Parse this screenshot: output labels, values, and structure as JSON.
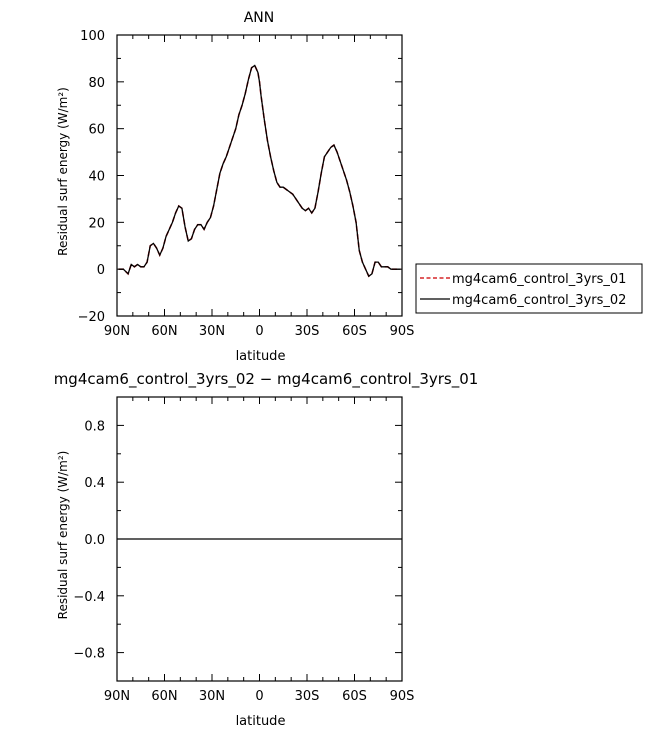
{
  "chart_data": [
    {
      "type": "line",
      "title": "ANN",
      "xlabel": "latitude",
      "ylabel": "Residual surf energy (W/m²)",
      "xlim": [
        90,
        -90
      ],
      "ylim": [
        -20,
        100
      ],
      "x_ticks": [
        90,
        60,
        30,
        0,
        -30,
        -60,
        -90
      ],
      "x_tick_labels": [
        "90N",
        "60N",
        "30N",
        "0",
        "30S",
        "60S",
        "90S"
      ],
      "y_ticks": [
        -20,
        0,
        20,
        40,
        60,
        80,
        100
      ],
      "y_tick_labels": [
        "−20",
        "0",
        "20",
        "40",
        "60",
        "80",
        "100"
      ],
      "legend_position": "right",
      "series": [
        {
          "name": "mg4cam6_control_3yrs_01",
          "color": "#d62728",
          "style": "dashed",
          "x": [
            89,
            86,
            83,
            81,
            79,
            77,
            75,
            73,
            71,
            69,
            67,
            65,
            63,
            61,
            59,
            57,
            55,
            53,
            51,
            49,
            47,
            45,
            43,
            41,
            39,
            37,
            35,
            33,
            31,
            29,
            27,
            25,
            23,
            21,
            19,
            17,
            15,
            13,
            11,
            9,
            7,
            5,
            3,
            1,
            0,
            -1,
            -3,
            -5,
            -7,
            -9,
            -11,
            -13,
            -15,
            -17,
            -19,
            -21,
            -23,
            -25,
            -27,
            -29,
            -31,
            -33,
            -35,
            -37,
            -39,
            -41,
            -43,
            -45,
            -47,
            -49,
            -51,
            -53,
            -55,
            -57,
            -59,
            -61,
            -63,
            -65,
            -67,
            -69,
            -71,
            -73,
            -75,
            -77,
            -79,
            -81,
            -83,
            -85,
            -87,
            -89
          ],
          "y": [
            0,
            0,
            -2,
            2,
            1,
            2,
            1,
            1,
            3,
            10,
            11,
            9,
            6,
            9,
            14,
            17,
            20,
            24,
            27,
            26,
            18,
            12,
            13,
            17,
            19,
            19,
            17,
            20,
            22,
            27,
            34,
            41,
            45,
            48,
            52,
            56,
            60,
            66,
            70,
            75,
            81,
            86,
            87,
            84,
            80,
            74,
            64,
            55,
            48,
            42,
            37,
            35,
            35,
            34,
            33,
            32,
            30,
            28,
            26,
            25,
            26,
            24,
            26,
            33,
            41,
            48,
            50,
            52,
            53,
            50,
            46,
            42,
            38,
            33,
            27,
            20,
            8,
            3,
            0,
            -3,
            -2,
            3,
            3,
            1,
            1,
            1,
            0,
            0,
            0,
            0
          ]
        },
        {
          "name": "mg4cam6_control_3yrs_02",
          "color": "#000000",
          "style": "solid",
          "x": [
            89,
            86,
            83,
            81,
            79,
            77,
            75,
            73,
            71,
            69,
            67,
            65,
            63,
            61,
            59,
            57,
            55,
            53,
            51,
            49,
            47,
            45,
            43,
            41,
            39,
            37,
            35,
            33,
            31,
            29,
            27,
            25,
            23,
            21,
            19,
            17,
            15,
            13,
            11,
            9,
            7,
            5,
            3,
            1,
            0,
            -1,
            -3,
            -5,
            -7,
            -9,
            -11,
            -13,
            -15,
            -17,
            -19,
            -21,
            -23,
            -25,
            -27,
            -29,
            -31,
            -33,
            -35,
            -37,
            -39,
            -41,
            -43,
            -45,
            -47,
            -49,
            -51,
            -53,
            -55,
            -57,
            -59,
            -61,
            -63,
            -65,
            -67,
            -69,
            -71,
            -73,
            -75,
            -77,
            -79,
            -81,
            -83,
            -85,
            -87,
            -89
          ],
          "y": [
            0,
            0,
            -2,
            2,
            1,
            2,
            1,
            1,
            3,
            10,
            11,
            9,
            6,
            9,
            14,
            17,
            20,
            24,
            27,
            26,
            18,
            12,
            13,
            17,
            19,
            19,
            17,
            20,
            22,
            27,
            34,
            41,
            45,
            48,
            52,
            56,
            60,
            66,
            70,
            75,
            81,
            86,
            87,
            84,
            80,
            74,
            64,
            55,
            48,
            42,
            37,
            35,
            35,
            34,
            33,
            32,
            30,
            28,
            26,
            25,
            26,
            24,
            26,
            33,
            41,
            48,
            50,
            52,
            53,
            50,
            46,
            42,
            38,
            33,
            27,
            20,
            8,
            3,
            0,
            -3,
            -2,
            3,
            3,
            1,
            1,
            1,
            0,
            0,
            0,
            0
          ]
        }
      ]
    },
    {
      "type": "line",
      "title": "mg4cam6_control_3yrs_02 − mg4cam6_control_3yrs_01",
      "xlabel": "latitude",
      "ylabel": "Residual surf energy (W/m²)",
      "xlim": [
        90,
        -90
      ],
      "ylim": [
        -1,
        1
      ],
      "x_ticks": [
        90,
        60,
        30,
        0,
        -30,
        -60,
        -90
      ],
      "x_tick_labels": [
        "90N",
        "60N",
        "30N",
        "0",
        "30S",
        "60S",
        "90S"
      ],
      "y_ticks": [
        -0.8,
        -0.4,
        0,
        0.4,
        0.8
      ],
      "y_tick_labels": [
        "−0.8",
        "−0.4",
        "0.0",
        "0.4",
        "0.8"
      ],
      "series": [
        {
          "color": "#000000",
          "style": "solid",
          "x": [
            90,
            -90
          ],
          "y": [
            0,
            0
          ]
        }
      ]
    }
  ]
}
